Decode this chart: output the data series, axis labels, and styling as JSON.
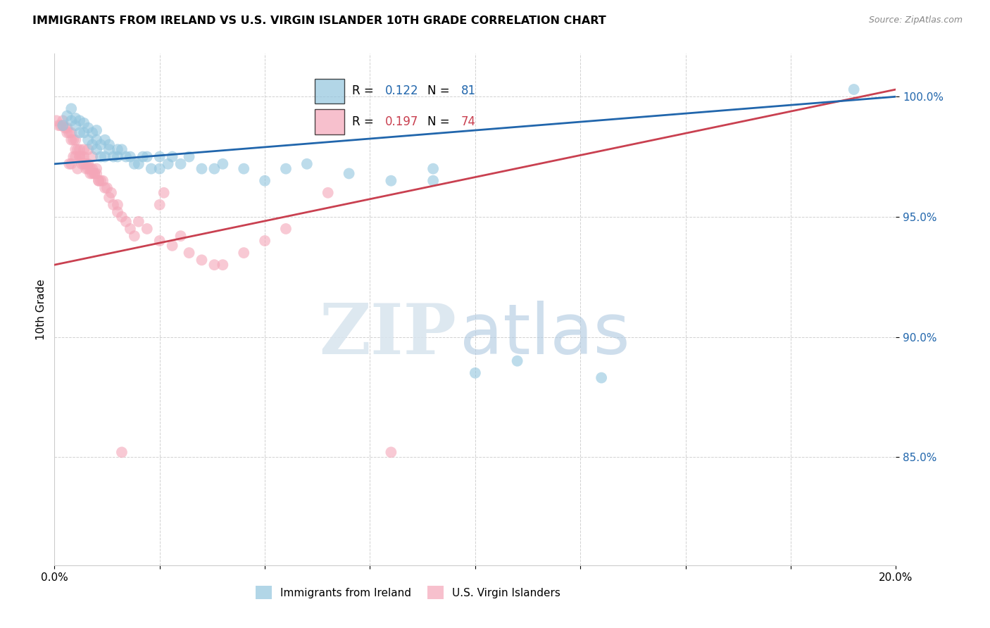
{
  "title": "IMMIGRANTS FROM IRELAND VS U.S. VIRGIN ISLANDER 10TH GRADE CORRELATION CHART",
  "source": "Source: ZipAtlas.com",
  "ylabel": "10th Grade",
  "x_min": 0.0,
  "x_max": 20.0,
  "y_min": 80.5,
  "y_max": 101.8,
  "color_blue": "#92c5de",
  "color_pink": "#f4a6b8",
  "color_trendline_blue": "#2166ac",
  "color_trendline_pink": "#c94050",
  "blue_x": [
    0.2,
    0.3,
    0.4,
    0.4,
    0.5,
    0.5,
    0.6,
    0.6,
    0.7,
    0.7,
    0.8,
    0.8,
    0.9,
    0.9,
    1.0,
    1.0,
    1.0,
    1.1,
    1.1,
    1.2,
    1.2,
    1.3,
    1.3,
    1.4,
    1.5,
    1.5,
    1.6,
    1.7,
    1.8,
    1.9,
    2.0,
    2.1,
    2.2,
    2.3,
    2.5,
    2.5,
    2.7,
    2.8,
    3.0,
    3.2,
    3.5,
    3.8,
    4.0,
    4.5,
    5.0,
    5.5,
    6.0,
    7.0,
    8.0,
    9.0,
    9.0,
    10.0,
    11.0,
    13.0,
    19.0
  ],
  "blue_y": [
    98.8,
    99.2,
    99.0,
    99.5,
    98.8,
    99.1,
    98.5,
    99.0,
    98.5,
    98.9,
    98.2,
    98.7,
    98.0,
    98.5,
    97.8,
    98.2,
    98.6,
    97.5,
    98.0,
    97.5,
    98.2,
    97.8,
    98.0,
    97.5,
    97.5,
    97.8,
    97.8,
    97.5,
    97.5,
    97.2,
    97.2,
    97.5,
    97.5,
    97.0,
    97.5,
    97.0,
    97.2,
    97.5,
    97.2,
    97.5,
    97.0,
    97.0,
    97.2,
    97.0,
    96.5,
    97.0,
    97.2,
    96.8,
    96.5,
    97.0,
    96.5,
    88.5,
    89.0,
    88.3,
    100.3
  ],
  "pink_x": [
    0.05,
    0.1,
    0.15,
    0.2,
    0.2,
    0.25,
    0.3,
    0.3,
    0.35,
    0.4,
    0.4,
    0.45,
    0.5,
    0.5,
    0.55,
    0.6,
    0.6,
    0.65,
    0.7,
    0.7,
    0.75,
    0.8,
    0.8,
    0.85,
    0.9,
    0.9,
    0.95,
    1.0,
    1.0,
    1.05,
    1.1,
    1.2,
    1.3,
    1.4,
    1.5,
    1.5,
    1.6,
    1.7,
    1.8,
    1.9,
    2.0,
    2.2,
    2.5,
    2.8,
    3.0,
    3.2,
    3.5,
    3.8,
    4.0,
    4.5,
    5.0,
    5.5,
    6.5,
    2.5,
    2.6,
    0.4,
    0.5,
    0.6,
    0.7,
    0.8,
    0.9,
    0.35,
    0.45,
    0.55,
    0.65,
    0.75,
    0.85,
    0.95,
    1.05,
    1.15,
    1.25,
    1.35,
    8.0,
    1.6
  ],
  "pink_y": [
    99.0,
    98.8,
    98.8,
    98.8,
    99.0,
    98.7,
    98.5,
    98.7,
    98.5,
    98.2,
    98.5,
    98.2,
    97.8,
    98.2,
    97.8,
    97.5,
    97.8,
    97.5,
    97.2,
    97.5,
    97.2,
    97.0,
    97.2,
    97.0,
    96.8,
    97.0,
    96.8,
    96.8,
    97.0,
    96.5,
    96.5,
    96.2,
    95.8,
    95.5,
    95.2,
    95.5,
    95.0,
    94.8,
    94.5,
    94.2,
    94.8,
    94.5,
    94.0,
    93.8,
    94.2,
    93.5,
    93.2,
    93.0,
    93.0,
    93.5,
    94.0,
    94.5,
    96.0,
    95.5,
    96.0,
    97.2,
    97.5,
    97.5,
    97.8,
    97.8,
    97.5,
    97.2,
    97.5,
    97.0,
    97.2,
    97.0,
    96.8,
    96.8,
    96.5,
    96.5,
    96.2,
    96.0,
    85.2,
    85.2
  ],
  "blue_trendline_x0": 0.0,
  "blue_trendline_y0": 97.2,
  "blue_trendline_x1": 20.0,
  "blue_trendline_y1": 100.0,
  "pink_trendline_x0": 0.0,
  "pink_trendline_y0": 93.0,
  "pink_trendline_x1": 20.0,
  "pink_trendline_y1": 100.3
}
